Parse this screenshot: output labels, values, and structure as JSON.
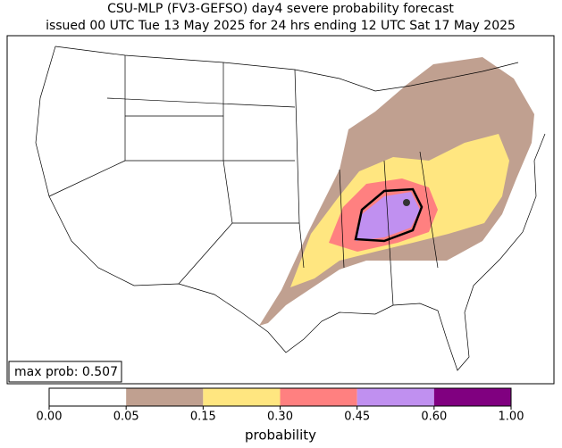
{
  "title": [
    "CSU-MLP (FV3-GEFSO) day4 severe probability forecast",
    "issued 00 UTC Tue 13 May 2025 for 24 hrs ending 12 UTC Sat 17 May 2025"
  ],
  "max_prob_label": "max prob: 0.507",
  "colorbar": {
    "label": "probability",
    "ticks": [
      {
        "value": 0,
        "label": "0.00"
      },
      {
        "value": 0.05,
        "label": "0.05"
      },
      {
        "value": 0.15,
        "label": "0.15"
      },
      {
        "value": 0.3,
        "label": "0.30"
      },
      {
        "value": 0.45,
        "label": "0.45"
      },
      {
        "value": 0.6,
        "label": "0.60"
      },
      {
        "value": 1,
        "label": "1.00"
      }
    ],
    "colors": [
      "#ffffff",
      "#c0a090",
      "#ffe680",
      "#ff8080",
      "#c090f0",
      "#800080"
    ]
  }
}
